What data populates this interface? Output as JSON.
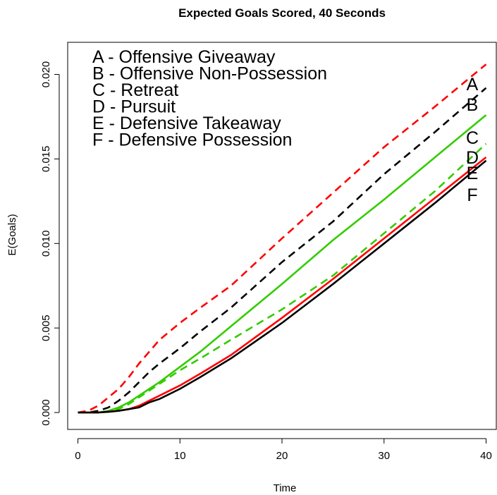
{
  "chart_data": {
    "type": "line",
    "title": "Expected Goals Scored, 40 Seconds",
    "xlabel": "Time",
    "ylabel": "E(Goals)",
    "xlim": [
      -1,
      41
    ],
    "ylim": [
      -0.001,
      0.0219
    ],
    "xticks": [
      0,
      10,
      20,
      30,
      40
    ],
    "yticks": [
      0.0,
      0.005,
      0.01,
      0.015,
      0.02
    ],
    "ytick_labels": [
      "0.000",
      "0.005",
      "0.010",
      "0.015",
      "0.020"
    ],
    "x": [
      0,
      1,
      2,
      3,
      4,
      5,
      6,
      7,
      8,
      10,
      12,
      15,
      20,
      25,
      30,
      35,
      40
    ],
    "legend_position": "top-left",
    "legend": [
      "A - Offensive Giveaway",
      "B - Offensive Non-Possession",
      "C - Retreat",
      "D - Pursuit",
      "E - Defensive Takeaway",
      "F - Defensive Possession"
    ],
    "end_labels": [
      "A",
      "B",
      "C",
      "D",
      "E",
      "F"
    ],
    "series": [
      {
        "color": "#ff0000",
        "dash": true,
        "values": [
          0,
          0.0001,
          0.0004,
          0.0009,
          0.0014,
          0.0021,
          0.0029,
          0.0036,
          0.0043,
          0.0053,
          0.0062,
          0.0075,
          0.0103,
          0.013,
          0.0157,
          0.0181,
          0.0206
        ]
      },
      {
        "color": "#000000",
        "dash": true,
        "values": [
          0,
          0,
          0.0001,
          0.0003,
          0.0007,
          0.0012,
          0.0018,
          0.0024,
          0.0029,
          0.0038,
          0.0048,
          0.0062,
          0.0089,
          0.0113,
          0.0141,
          0.0166,
          0.0192
        ]
      },
      {
        "color": "#33cc00",
        "dash": false,
        "values": [
          0,
          0,
          0,
          0.0001,
          0.0003,
          0.0006,
          0.001,
          0.0014,
          0.0018,
          0.0027,
          0.0036,
          0.0051,
          0.0076,
          0.0102,
          0.0126,
          0.0151,
          0.0176
        ]
      },
      {
        "color": "#33cc00",
        "dash": true,
        "values": [
          0,
          0,
          0,
          0.0001,
          0.0002,
          0.0005,
          0.0009,
          0.0013,
          0.0017,
          0.0025,
          0.0032,
          0.0043,
          0.0061,
          0.0081,
          0.0106,
          0.0131,
          0.0159
        ]
      },
      {
        "color": "#ff0000",
        "dash": false,
        "values": [
          0,
          0,
          0,
          5e-05,
          0.0001,
          0.0002,
          0.0004,
          0.0007,
          0.001,
          0.0016,
          0.0023,
          0.0034,
          0.0056,
          0.0079,
          0.0103,
          0.0127,
          0.0151
        ]
      },
      {
        "color": "#000000",
        "dash": false,
        "values": [
          0,
          0,
          0,
          4e-05,
          0.0001,
          0.0002,
          0.0003,
          0.0006,
          0.0008,
          0.0014,
          0.0021,
          0.0032,
          0.0053,
          0.0076,
          0.01,
          0.0124,
          0.0149
        ]
      }
    ]
  }
}
